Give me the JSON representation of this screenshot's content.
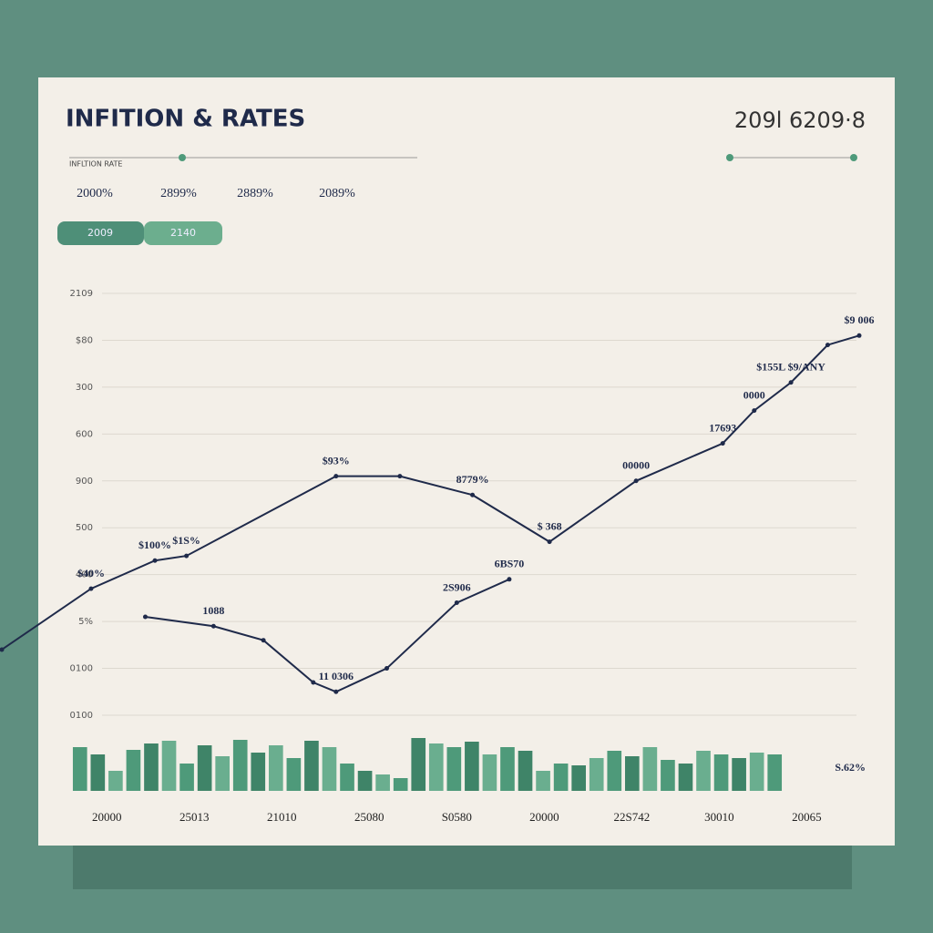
{
  "header": {
    "code": "209l 6209·8",
    "caption": "INFLTION RATE",
    "stats": [
      "2000%",
      "2899%",
      "2889%",
      "2089%"
    ],
    "tabs": [
      "2009",
      "2140"
    ]
  },
  "chart_data": [
    {
      "type": "line",
      "title": "INFITION & RATES",
      "xlim": [
        -1.2,
        8.6
      ],
      "xticks": [
        {
          "value": 0,
          "label": "20000"
        },
        {
          "value": 1,
          "label": "25013"
        },
        {
          "value": 2,
          "label": "21010"
        },
        {
          "value": 3,
          "label": "25080"
        },
        {
          "value": 4,
          "label": "S0580"
        },
        {
          "value": 5,
          "label": "20000"
        },
        {
          "value": 6,
          "label": "22S742"
        },
        {
          "value": 7,
          "label": "30010"
        },
        {
          "value": 8,
          "label": "20065"
        }
      ],
      "ylim": [
        0,
        9
      ],
      "yticks": [
        {
          "value": 0,
          "label": "0100"
        },
        {
          "value": 1,
          "label": "0100"
        },
        {
          "value": 2,
          "label": "5%"
        },
        {
          "value": 3,
          "label": "400"
        },
        {
          "value": 4,
          "label": "500"
        },
        {
          "value": 5,
          "label": "900"
        },
        {
          "value": 6,
          "label": "600"
        },
        {
          "value": 7,
          "label": "300"
        },
        {
          "value": 8,
          "label": "$80"
        },
        {
          "value": 9,
          "label": "2109"
        }
      ],
      "grid": true,
      "series": [
        {
          "color": "#1f2a4a",
          "x": [
            -1.2,
            -0.18,
            0.55,
            0.91,
            2.62,
            3.35,
            4.18,
            5.06,
            6.05,
            7.04,
            7.4,
            7.82,
            8.24,
            8.6
          ],
          "values": [
            1.4,
            2.7,
            3.3,
            3.4,
            5.1,
            5.1,
            4.7,
            3.7,
            5.0,
            5.8,
            6.5,
            7.1,
            7.9,
            8.1
          ],
          "value_labels": [
            null,
            "$40%",
            "$100%",
            "$1S%",
            "$93%",
            null,
            "8779%",
            "$ 368",
            "00000",
            "17693",
            "0000",
            "$155L $9/ANY",
            null,
            "$9 006"
          ]
        },
        {
          "color": "#1f2a4a",
          "x": [
            0.44,
            1.22,
            1.79,
            2.36,
            2.62,
            3.2,
            4.0,
            4.6
          ],
          "values": [
            2.1,
            1.9,
            1.6,
            0.7,
            0.5,
            1.0,
            2.4,
            2.9
          ],
          "value_labels": [
            null,
            "1088",
            null,
            null,
            "11 0306",
            null,
            "2S906",
            "6BS70"
          ]
        }
      ]
    },
    {
      "type": "bar",
      "color": "#4e9a7a",
      "ylim": [
        0,
        60
      ],
      "value_labels": [
        "S.62%"
      ],
      "values": [
        48,
        40,
        22,
        45,
        52,
        55,
        30,
        50,
        38,
        56,
        42,
        50,
        36,
        55,
        48,
        30,
        22,
        18,
        14,
        58,
        52,
        48,
        54,
        40,
        48,
        44,
        22,
        30,
        28,
        36,
        44,
        38,
        48,
        34,
        30,
        44,
        40,
        36,
        42,
        40
      ]
    }
  ]
}
